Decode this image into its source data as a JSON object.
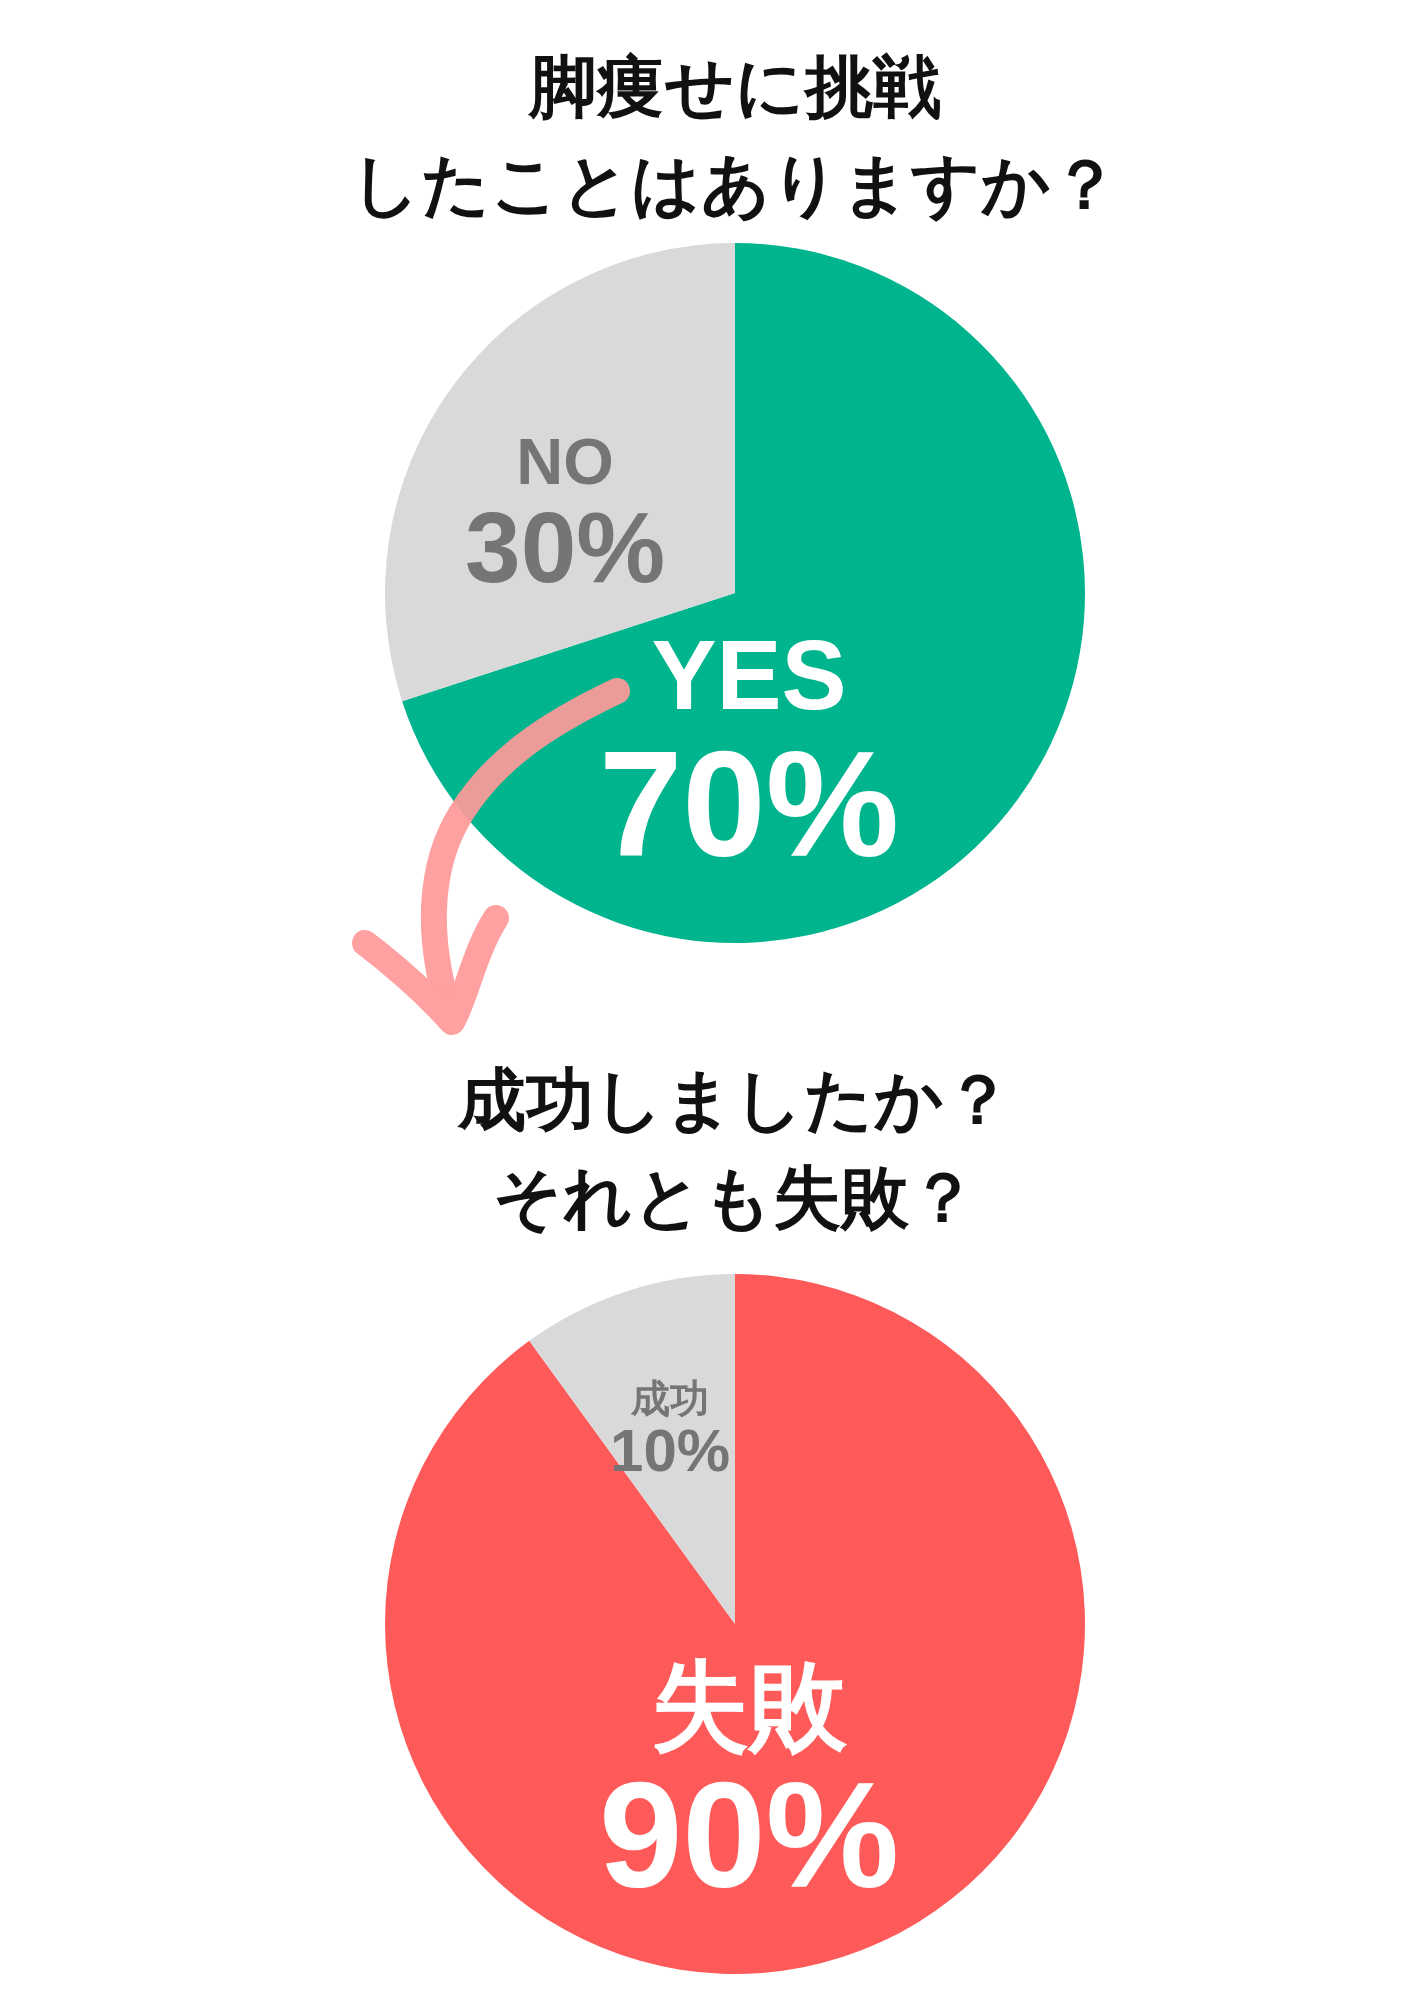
{
  "chart_data": [
    {
      "type": "pie",
      "title": "脚痩せに挑戦したことはありますか？",
      "categories": [
        "YES",
        "NO"
      ],
      "values": [
        70,
        30
      ],
      "colors": [
        "#00b48e",
        "#d9d9d9"
      ],
      "value_labels": [
        "70%",
        "30%"
      ]
    },
    {
      "type": "pie",
      "title": "成功しましたか？それとも失敗？",
      "categories": [
        "失敗",
        "成功"
      ],
      "values": [
        90,
        10
      ],
      "colors": [
        "#ff5a5a",
        "#d9d9d9"
      ],
      "value_labels": [
        "90%",
        "10%"
      ]
    }
  ]
}
